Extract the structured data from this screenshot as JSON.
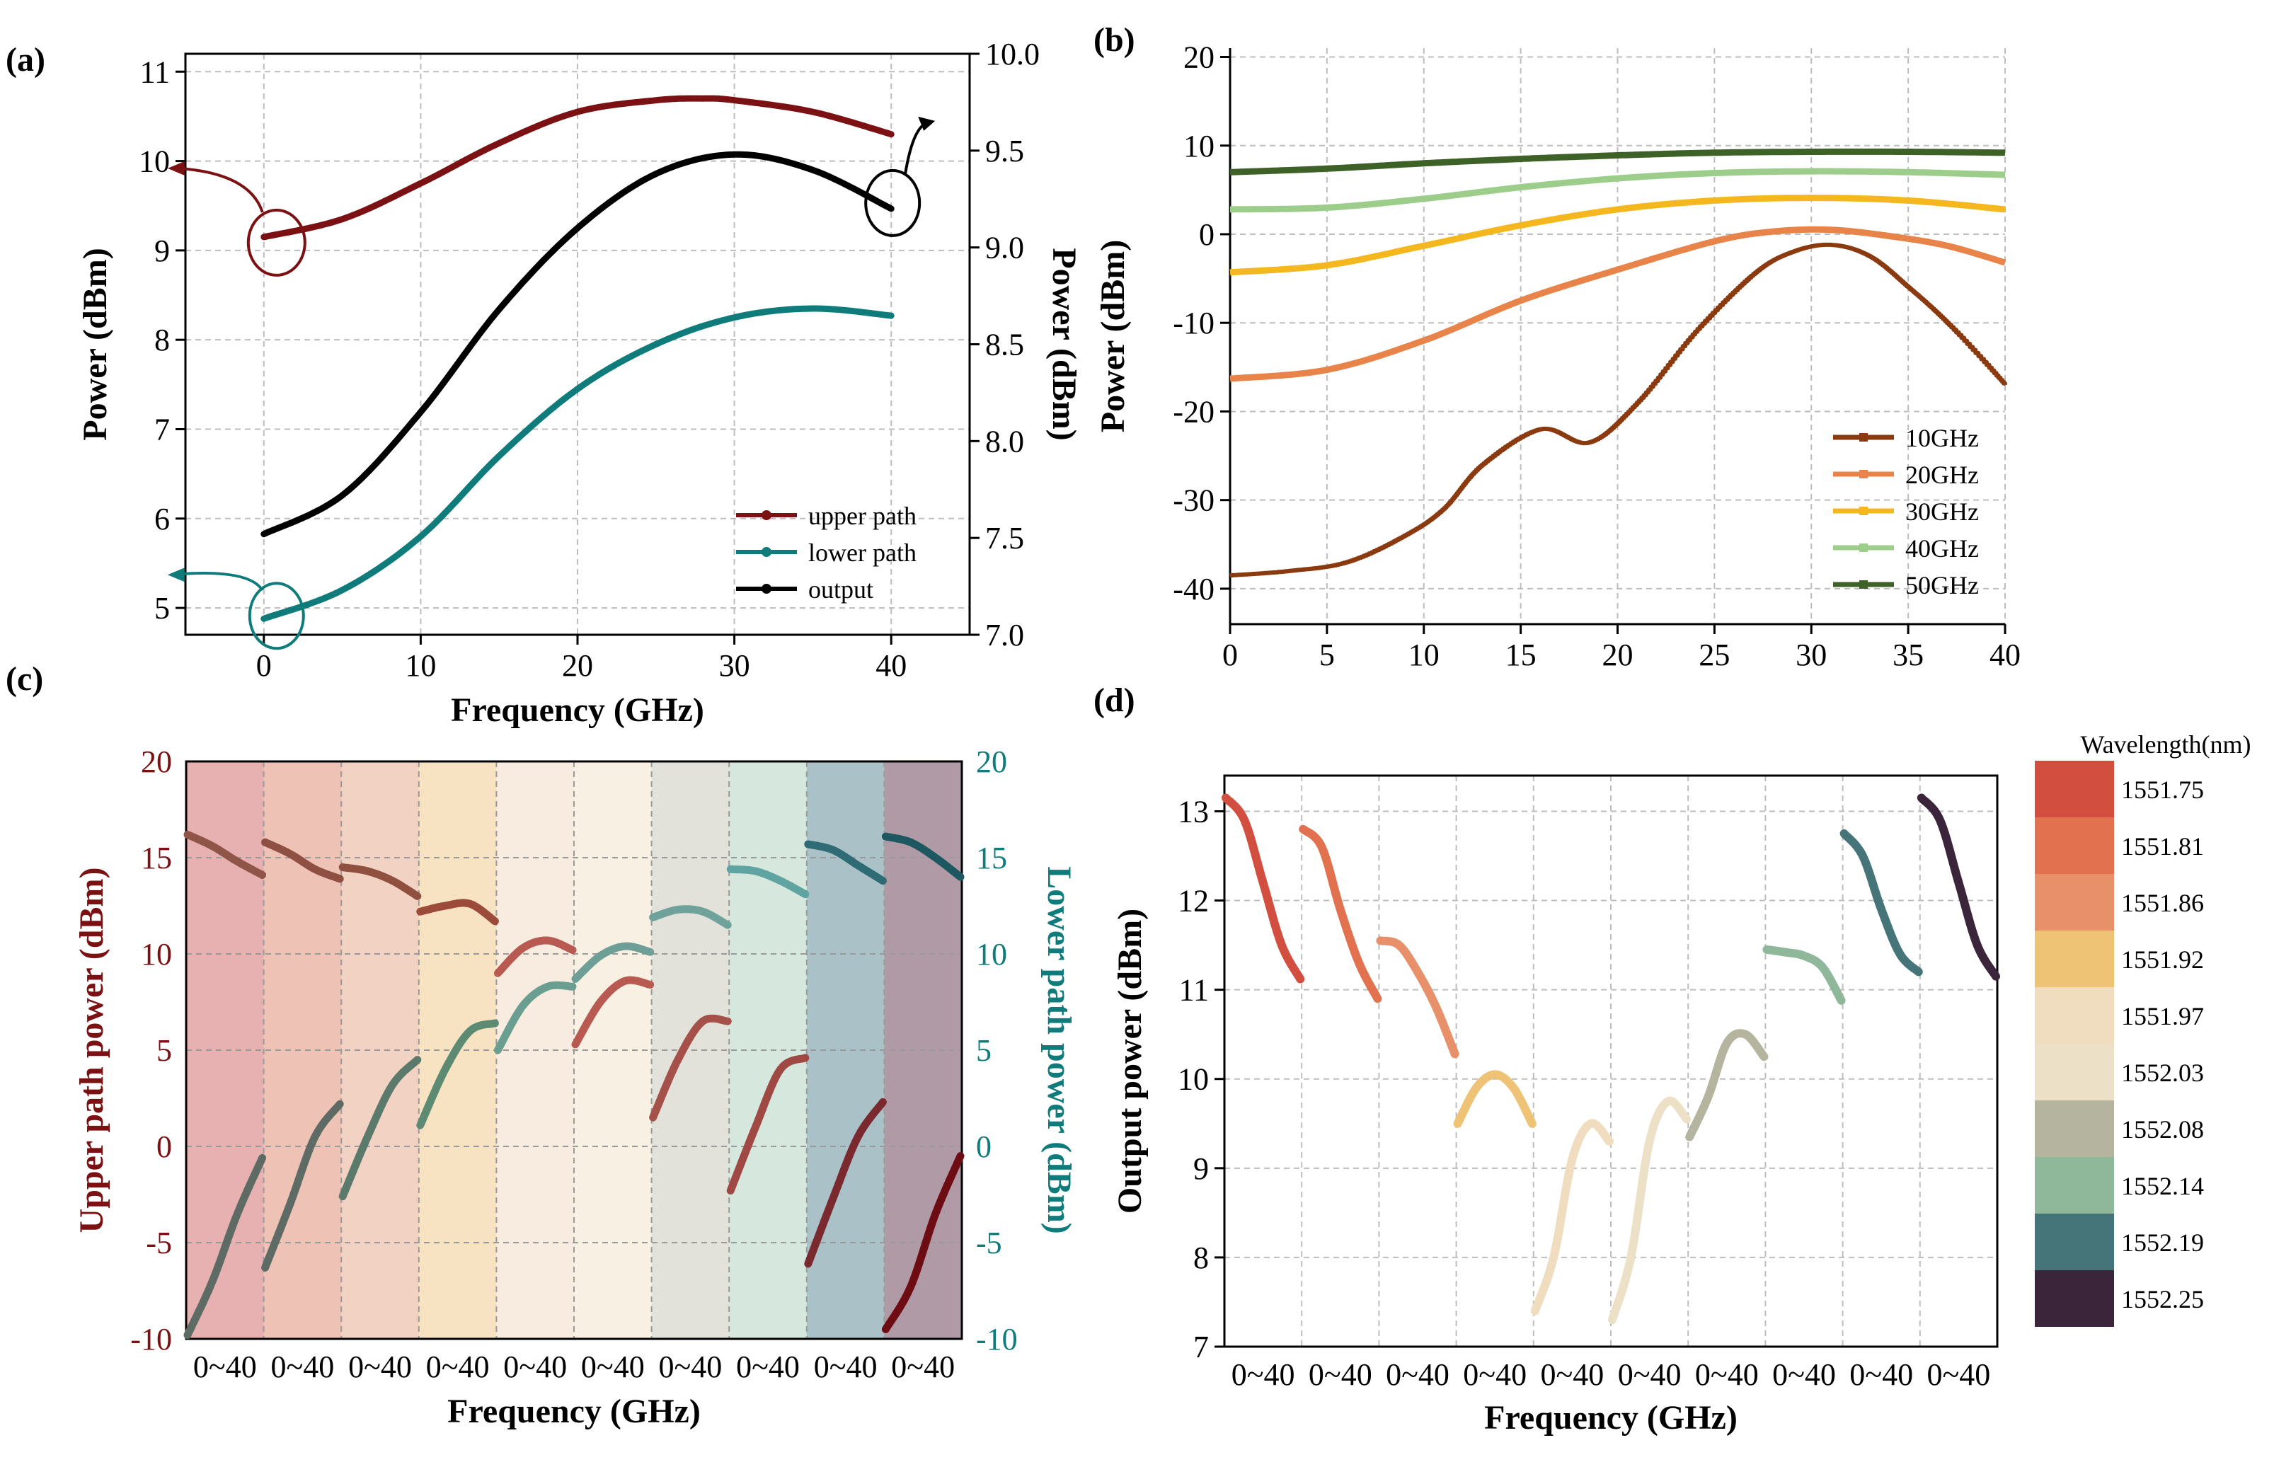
{
  "figure_labels": {
    "a": "(a)",
    "b": "(b)",
    "c": "(c)",
    "d": "(d)"
  },
  "chart_data": [
    {
      "panel": "(a)",
      "type": "line",
      "xlabel": "Frequency (GHz)",
      "ylabel": "Power (dBm)",
      "y2label": "Power (dBm)",
      "xlim": [
        -5,
        45
      ],
      "ylim": [
        4.7,
        11.2
      ],
      "y2lim": [
        7.0,
        10.0
      ],
      "xticks": [
        0,
        10,
        20,
        30,
        40
      ],
      "yticks": [
        5,
        6,
        7,
        8,
        9,
        10,
        11
      ],
      "y2ticks": [
        "7.0",
        "7.5",
        "8.0",
        "8.5",
        "9.0",
        "9.5",
        "10.0"
      ],
      "grid": true,
      "legend_position": "bottom-right",
      "series": [
        {
          "name": "upper path",
          "axis": "left",
          "color": "#7b1113",
          "x": [
            0,
            5,
            10,
            15,
            20,
            25,
            28,
            30,
            35,
            40
          ],
          "values": [
            9.15,
            9.35,
            9.75,
            10.2,
            10.55,
            10.68,
            10.7,
            10.68,
            10.55,
            10.3
          ]
        },
        {
          "name": "lower path",
          "axis": "left",
          "color": "#0f7b7b",
          "x": [
            0,
            5,
            10,
            15,
            20,
            25,
            30,
            35,
            40
          ],
          "values": [
            4.88,
            5.2,
            5.8,
            6.7,
            7.45,
            7.95,
            8.25,
            8.35,
            8.27
          ]
        },
        {
          "name": "output",
          "axis": "right",
          "color": "#000000",
          "x": [
            0,
            5,
            10,
            15,
            20,
            25,
            30,
            35,
            40
          ],
          "values": [
            7.52,
            7.72,
            8.15,
            8.68,
            9.1,
            9.38,
            9.48,
            9.4,
            9.2
          ]
        }
      ]
    },
    {
      "panel": "(b)",
      "type": "line",
      "xlabel": "",
      "ylabel": "Power (dBm)",
      "xlim": [
        0,
        40
      ],
      "ylim": [
        -44,
        21
      ],
      "xticks": [
        0,
        5,
        10,
        15,
        20,
        25,
        30,
        35,
        40
      ],
      "yticks": [
        -40,
        -30,
        -20,
        -10,
        0,
        10,
        20
      ],
      "grid": true,
      "legend_position": "bottom-right",
      "series": [
        {
          "name": "10GHz",
          "color": "#8b3a0f",
          "x": [
            0,
            3,
            6,
            9,
            11,
            13,
            16,
            18.5,
            21,
            24,
            27,
            29,
            31,
            33,
            35,
            37,
            40
          ],
          "values": [
            -38.5,
            -38,
            -37,
            -34,
            -31,
            -26,
            -22,
            -23.5,
            -19,
            -11,
            -4.5,
            -2,
            -1.2,
            -2.5,
            -6,
            -10,
            -17
          ]
        },
        {
          "name": "20GHz",
          "color": "#e8834a",
          "x": [
            0,
            5,
            10,
            15,
            20,
            25,
            28,
            31,
            34,
            37,
            40
          ],
          "values": [
            -16.3,
            -15.3,
            -12,
            -7.5,
            -4,
            -0.8,
            0.3,
            0.5,
            -0.2,
            -1.3,
            -3.2
          ]
        },
        {
          "name": "30GHz",
          "color": "#f4b71e",
          "x": [
            0,
            5,
            10,
            15,
            20,
            25,
            30,
            35,
            40
          ],
          "values": [
            -4.3,
            -3.5,
            -1.3,
            1,
            2.8,
            3.8,
            4.1,
            3.8,
            2.8
          ]
        },
        {
          "name": "40GHz",
          "color": "#9ccd8a",
          "x": [
            0,
            5,
            10,
            15,
            20,
            25,
            30,
            35,
            40
          ],
          "values": [
            2.8,
            3,
            4,
            5.3,
            6.3,
            6.9,
            7.1,
            7,
            6.7
          ]
        },
        {
          "name": "50GHz",
          "color": "#3e6128",
          "x": [
            0,
            5,
            10,
            15,
            20,
            25,
            30,
            35,
            40
          ],
          "values": [
            7,
            7.4,
            8,
            8.5,
            8.9,
            9.2,
            9.3,
            9.3,
            9.2
          ]
        }
      ]
    },
    {
      "panel": "(c)",
      "type": "line",
      "xlabel": "Frequency (GHz)",
      "ylabel": "Upper path power (dBm)",
      "y2label": "Lower path power (dBm)",
      "ylim": [
        -10,
        20
      ],
      "y2lim": [
        -10,
        20
      ],
      "yticks": [
        -10,
        -5,
        0,
        5,
        10,
        15,
        20
      ],
      "y2ticks": [
        -10,
        -5,
        0,
        5,
        10,
        15,
        20
      ],
      "xtick_label": "0~40",
      "segments": 10,
      "band_colors": [
        "#e7b1b1",
        "#efc2b6",
        "#f2d2c3",
        "#f7e3c1",
        "#f8ece0",
        "#f8f0e2",
        "#e3e2da",
        "#d6e8dd",
        "#a9c1c7",
        "#b09aa5"
      ],
      "upper_values": [
        [
          16.2,
          15.6,
          14.8,
          14.1
        ],
        [
          15.8,
          15.2,
          14.4,
          13.9
        ],
        [
          14.5,
          14.3,
          13.8,
          13.0
        ],
        [
          12.2,
          12.5,
          12.6,
          11.7
        ],
        [
          9.0,
          10.3,
          10.7,
          10.2
        ],
        [
          5.3,
          7.5,
          8.6,
          8.4
        ],
        [
          1.5,
          4.5,
          6.5,
          6.5
        ],
        [
          -2.3,
          1.0,
          4.0,
          4.6
        ],
        [
          -6.1,
          -2.7,
          0.5,
          2.3
        ],
        [
          -9.5,
          -7.3,
          -3.5,
          -0.5
        ]
      ],
      "lower_values": [
        [
          -9.8,
          -7.0,
          -3.5,
          -0.6
        ],
        [
          -6.3,
          -3.0,
          0.5,
          2.2
        ],
        [
          -2.6,
          0.5,
          3.2,
          4.5
        ],
        [
          1.1,
          4.0,
          6.0,
          6.4
        ],
        [
          5.0,
          7.3,
          8.3,
          8.3
        ],
        [
          8.7,
          9.9,
          10.4,
          10.1
        ],
        [
          11.9,
          12.3,
          12.2,
          11.5
        ],
        [
          14.4,
          14.3,
          13.8,
          13.1
        ],
        [
          15.7,
          15.4,
          14.6,
          13.8
        ],
        [
          16.1,
          15.8,
          15.0,
          14.0
        ]
      ],
      "upper_colors": [
        "#8f5647",
        "#8f4f42",
        "#8f503f",
        "#9c4a3a",
        "#b85a52",
        "#b85a52",
        "#a6504a",
        "#a04843",
        "#7a2a2e",
        "#6e0c14"
      ],
      "lower_colors": [
        "#5e6b65",
        "#5e6b65",
        "#5b7a6c",
        "#5c8a73",
        "#6a9e91",
        "#6e9f97",
        "#6ea29b",
        "#5fa4a0",
        "#2f6b75",
        "#1d5760"
      ]
    },
    {
      "panel": "(d)",
      "type": "line",
      "xlabel": "Frequency (GHz)",
      "ylabel": "Output power (dBm)",
      "ylim": [
        7,
        13.4
      ],
      "yticks": [
        7,
        8,
        9,
        10,
        11,
        12,
        13
      ],
      "xtick_label": "0~40",
      "segments": 10,
      "values": [
        [
          13.15,
          12.9,
          12.2,
          11.5,
          11.12
        ],
        [
          12.8,
          12.6,
          11.9,
          11.3,
          10.9
        ],
        [
          11.55,
          11.5,
          11.2,
          10.8,
          10.28
        ],
        [
          9.5,
          9.9,
          10.05,
          9.9,
          9.5
        ],
        [
          7.4,
          8.0,
          9.1,
          9.5,
          9.3
        ],
        [
          7.3,
          8.0,
          9.3,
          9.75,
          9.55
        ],
        [
          9.35,
          9.8,
          10.4,
          10.5,
          10.25
        ],
        [
          11.45,
          11.42,
          11.38,
          11.25,
          10.88
        ],
        [
          12.75,
          12.5,
          11.9,
          11.4,
          11.2
        ],
        [
          13.15,
          12.9,
          12.2,
          11.5,
          11.15
        ]
      ],
      "legend_title": "Wavelength(nm)",
      "legend_labels": [
        "1551.75",
        "1551.81",
        "1551.86",
        "1551.92",
        "1551.97",
        "1552.03",
        "1552.08",
        "1552.14",
        "1552.19",
        "1552.25"
      ],
      "colors": [
        "#d24e3f",
        "#e27150",
        "#e8906a",
        "#eec376",
        "#f0dcbf",
        "#ece0c7",
        "#b5b49e",
        "#8fb79a",
        "#457579",
        "#3b253a"
      ]
    }
  ]
}
